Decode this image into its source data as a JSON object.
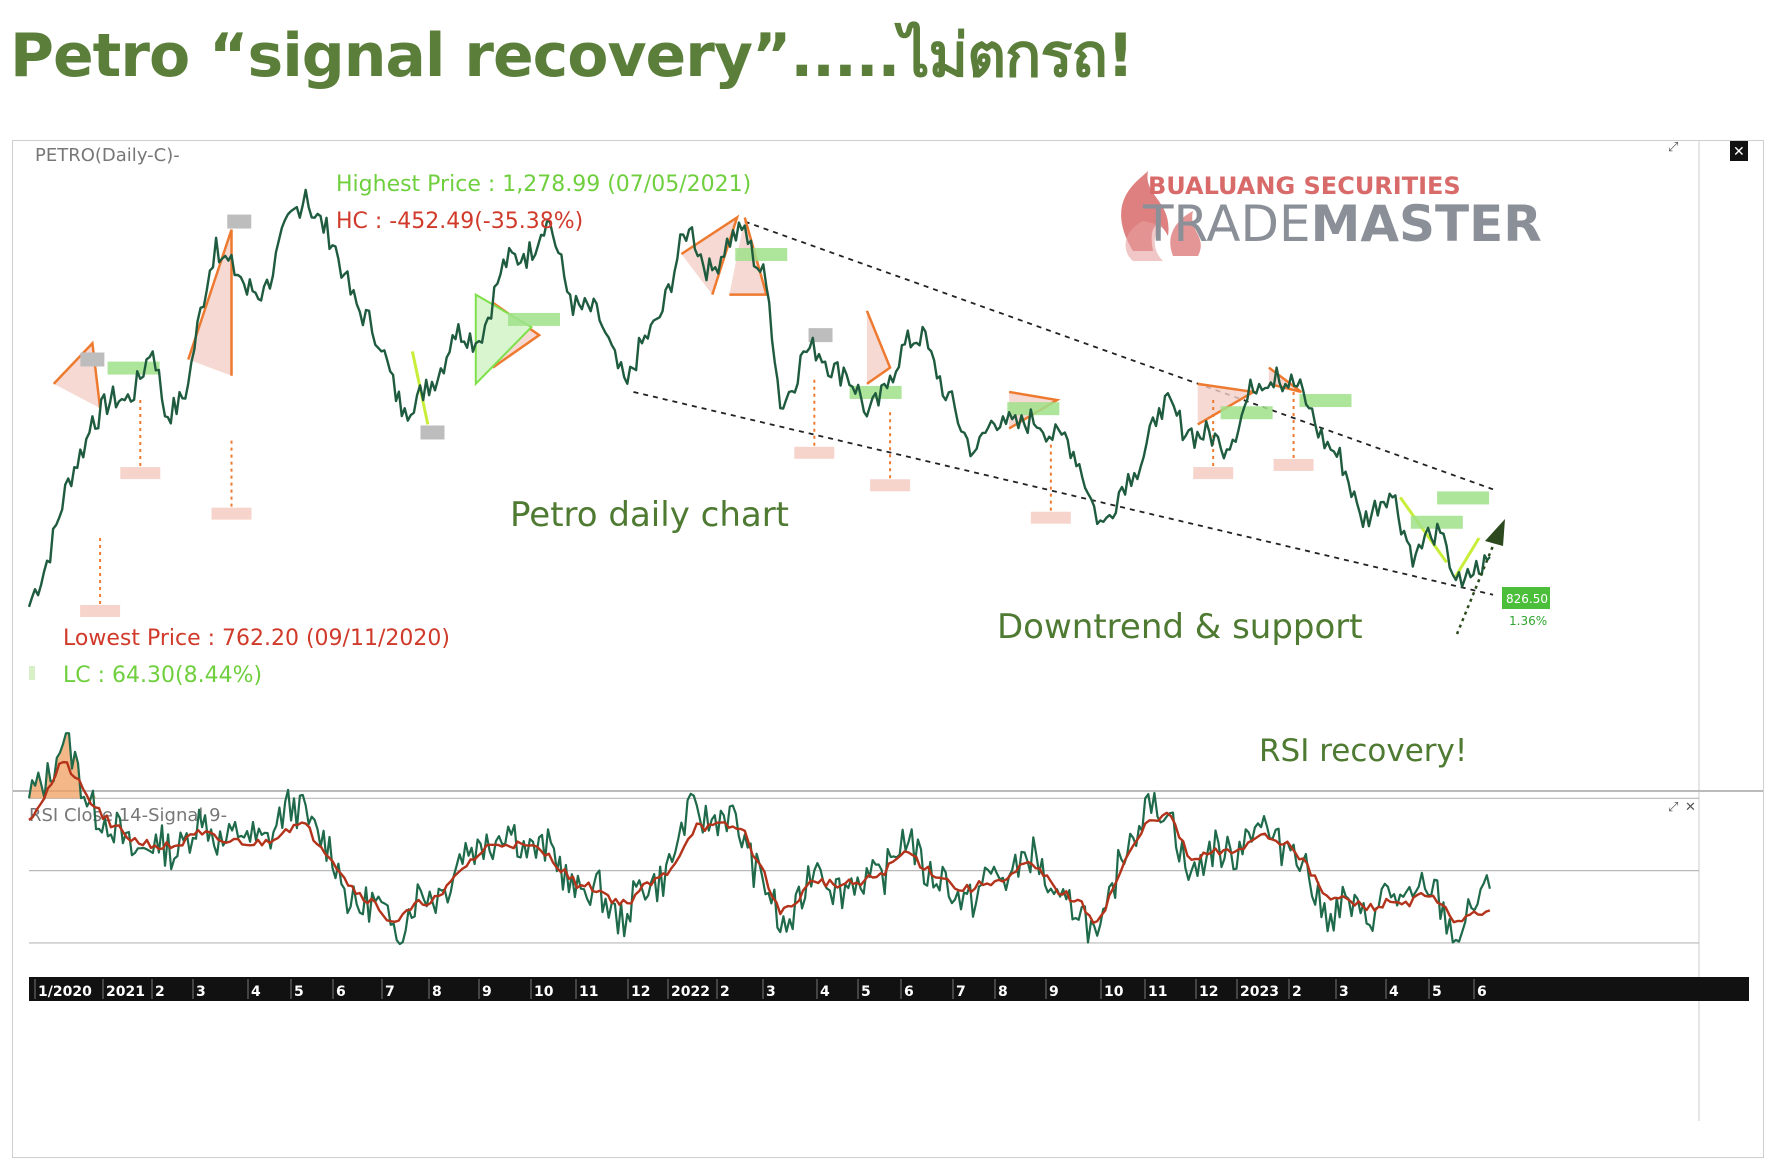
{
  "headline": "Petro “signal recovery”.....ไม่ตกรถ!",
  "main_panel": {
    "legend": "PETRO(Daily-C)-",
    "highest_price": "Highest Price : 1,278.99 (07/05/2021)",
    "hc": "HC : -452.49(-35.38%)",
    "lowest_price": "Lowest Price : 762.20 (09/11/2020)",
    "lc": "LC : 64.30(8.44%)",
    "note_chart": "Petro daily chart",
    "note_trend": "Downtrend & support",
    "last_price": "826.50",
    "last_change": "1.36%",
    "watermark_top": "BUALUANG SECURITIES",
    "watermark_brand_1": "TRADE",
    "watermark_brand_2": "MASTER"
  },
  "rsi_panel": {
    "legend": "RSI Close 14-Signal 9-",
    "note": "RSI recovery!"
  },
  "colors": {
    "price_line": "#1f5c3f",
    "rsi_line": "#1f6a4a",
    "signal_line": "#b3331b",
    "pattern_orange": "#ee7a30",
    "pattern_fill": "#f4cfc8",
    "bull_green": "#7ee04a",
    "lime": "#c8ee3a",
    "headline": "#5b7f3a",
    "green_text": "#6fcf3e",
    "red_text": "#d03a2a",
    "brand_red": "#d96a6a",
    "brand_gray": "#8a8f98"
  },
  "chart_data": {
    "type": "line",
    "x_tick_labels": [
      "1/2020",
      "2021",
      "2",
      "3",
      "4",
      "5",
      "6",
      "7",
      "8",
      "9",
      "10",
      "11",
      "12",
      "2022",
      "2",
      "3",
      "4",
      "5",
      "6",
      "7",
      "8",
      "9",
      "10",
      "11",
      "12",
      "2023",
      "2",
      "3",
      "4",
      "5",
      "6"
    ],
    "series": [
      {
        "name": "PETRO(Daily-C)",
        "key_points": [
          [
            "2020-11-09",
            762.2
          ],
          [
            "2020-12-20",
            1000
          ],
          [
            "2021-01-10",
            1020
          ],
          [
            "2021-01-28",
            1080
          ],
          [
            "2021-02-05",
            1000
          ],
          [
            "2021-02-20",
            1040
          ],
          [
            "2021-03-10",
            1220
          ],
          [
            "2021-03-30",
            1150
          ],
          [
            "2021-04-10",
            1160
          ],
          [
            "2021-05-07",
            1278.99
          ],
          [
            "2021-06-01",
            1175
          ],
          [
            "2021-06-25",
            1080
          ],
          [
            "2021-07-10",
            1010
          ],
          [
            "2021-07-22",
            1020
          ],
          [
            "2021-08-10",
            1100
          ],
          [
            "2021-08-25",
            1090
          ],
          [
            "2021-09-10",
            1175
          ],
          [
            "2021-09-25",
            1200
          ],
          [
            "2021-10-10",
            1240
          ],
          [
            "2021-10-25",
            1150
          ],
          [
            "2021-11-15",
            1110
          ],
          [
            "2021-12-01",
            1040
          ],
          [
            "2021-12-20",
            1120
          ],
          [
            "2022-01-10",
            1230
          ],
          [
            "2022-01-25",
            1180
          ],
          [
            "2022-02-15",
            1235
          ],
          [
            "2022-03-01",
            1160
          ],
          [
            "2022-03-10",
            1010
          ],
          [
            "2022-03-25",
            1080
          ],
          [
            "2022-04-20",
            1060
          ],
          [
            "2022-05-05",
            1000
          ],
          [
            "2022-05-20",
            1050
          ],
          [
            "2022-06-10",
            1110
          ],
          [
            "2022-06-25",
            1020
          ],
          [
            "2022-07-15",
            960
          ],
          [
            "2022-08-01",
            1000
          ],
          [
            "2022-08-25",
            985
          ],
          [
            "2022-09-10",
            980
          ],
          [
            "2022-09-25",
            905
          ],
          [
            "2022-10-05",
            870
          ],
          [
            "2022-10-25",
            930
          ],
          [
            "2022-11-10",
            1010
          ],
          [
            "2022-12-01",
            985
          ],
          [
            "2022-12-20",
            960
          ],
          [
            "2023-01-10",
            1030
          ],
          [
            "2023-01-25",
            1060
          ],
          [
            "2023-02-15",
            1010
          ],
          [
            "2023-03-05",
            950
          ],
          [
            "2023-03-20",
            880
          ],
          [
            "2023-04-10",
            900
          ],
          [
            "2023-04-25",
            830
          ],
          [
            "2023-05-05",
            850
          ],
          [
            "2023-05-15",
            840
          ],
          [
            "2023-05-25",
            790
          ],
          [
            "2023-06-05",
            806
          ],
          [
            "2023-06-12",
            826.5
          ]
        ]
      },
      {
        "name": "RSI Close 14",
        "key_points": [
          [
            "2020-11-09",
            70
          ],
          [
            "2020-12-01",
            85
          ],
          [
            "2021-01-01",
            60
          ],
          [
            "2021-02-01",
            55
          ],
          [
            "2021-03-01",
            62
          ],
          [
            "2021-04-01",
            58
          ],
          [
            "2021-05-07",
            68
          ],
          [
            "2021-06-01",
            45
          ],
          [
            "2021-07-01",
            35
          ],
          [
            "2021-08-01",
            45
          ],
          [
            "2021-09-01",
            60
          ],
          [
            "2021-10-01",
            58
          ],
          [
            "2021-11-01",
            45
          ],
          [
            "2021-12-01",
            38
          ],
          [
            "2022-01-01",
            55
          ],
          [
            "2022-01-15",
            68
          ],
          [
            "2022-02-15",
            60
          ],
          [
            "2022-03-10",
            33
          ],
          [
            "2022-04-01",
            50
          ],
          [
            "2022-05-01",
            45
          ],
          [
            "2022-06-01",
            58
          ],
          [
            "2022-07-01",
            42
          ],
          [
            "2022-08-01",
            48
          ],
          [
            "2022-08-15",
            55
          ],
          [
            "2022-09-01",
            45
          ],
          [
            "2022-10-01",
            32
          ],
          [
            "2022-11-01",
            70
          ],
          [
            "2022-11-15",
            65
          ],
          [
            "2022-12-01",
            50
          ],
          [
            "2023-01-01",
            58
          ],
          [
            "2023-01-15",
            62
          ],
          [
            "2023-02-01",
            58
          ],
          [
            "2023-03-01",
            38
          ],
          [
            "2023-04-01",
            40
          ],
          [
            "2023-05-01",
            45
          ],
          [
            "2023-05-25",
            33
          ],
          [
            "2023-06-12",
            45
          ]
        ]
      },
      {
        "name": "Signal 9",
        "key_points": [
          [
            "2020-11-09",
            64
          ],
          [
            "2020-12-01",
            80
          ],
          [
            "2021-01-01",
            62
          ],
          [
            "2021-02-01",
            56
          ],
          [
            "2021-03-01",
            60
          ],
          [
            "2021-04-01",
            57
          ],
          [
            "2021-05-07",
            63
          ],
          [
            "2021-06-01",
            48
          ],
          [
            "2021-07-01",
            36
          ],
          [
            "2021-08-01",
            43
          ],
          [
            "2021-09-01",
            57
          ],
          [
            "2021-10-01",
            57
          ],
          [
            "2021-11-01",
            46
          ],
          [
            "2021-12-01",
            41
          ],
          [
            "2022-01-01",
            52
          ],
          [
            "2022-01-15",
            63
          ],
          [
            "2022-02-15",
            61
          ],
          [
            "2022-03-10",
            38
          ],
          [
            "2022-04-01",
            47
          ],
          [
            "2022-05-01",
            46
          ],
          [
            "2022-06-01",
            55
          ],
          [
            "2022-07-01",
            45
          ],
          [
            "2022-08-01",
            47
          ],
          [
            "2022-08-15",
            52
          ],
          [
            "2022-09-01",
            47
          ],
          [
            "2022-10-01",
            36
          ],
          [
            "2022-11-01",
            63
          ],
          [
            "2022-11-15",
            66
          ],
          [
            "2022-12-01",
            53
          ],
          [
            "2023-01-01",
            56
          ],
          [
            "2023-01-15",
            60
          ],
          [
            "2023-02-01",
            58
          ],
          [
            "2023-03-01",
            42
          ],
          [
            "2023-04-01",
            40
          ],
          [
            "2023-05-01",
            43
          ],
          [
            "2023-05-25",
            36
          ],
          [
            "2023-06-12",
            39
          ]
        ]
      }
    ],
    "price_ylim": [
      760,
      1290
    ],
    "rsi_ylim": [
      25,
      90
    ],
    "rsi_levels": [
      70,
      50,
      30
    ],
    "annotations": [
      {
        "type": "downtrend_channel",
        "from": [
          "2022-02-15",
          1240
        ],
        "to": [
          "2023-06-14",
          910
        ]
      },
      {
        "type": "support_channel",
        "from": [
          "2021-12-05",
          1030
        ],
        "to": [
          "2023-06-14",
          780
        ]
      }
    ]
  }
}
